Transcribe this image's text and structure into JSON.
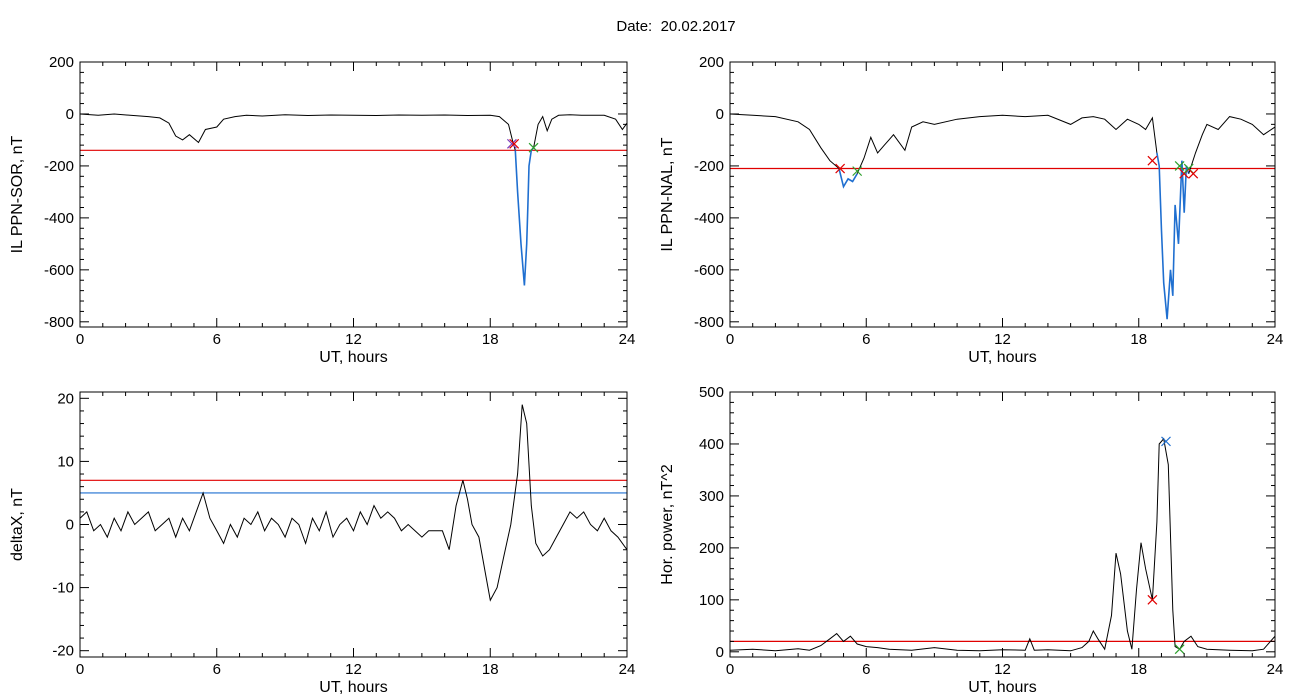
{
  "header": {
    "date_label": "Date:",
    "date_value": "20.02.2017"
  },
  "colors": {
    "trace": "#000000",
    "threshold": "#e00000",
    "highlight": "#1f6fd0",
    "marker_green": "#2ca02c",
    "marker_purple": "#7a3fbf"
  },
  "chart_data": [
    {
      "id": "il-sor",
      "type": "line",
      "xlabel": "UT, hours",
      "ylabel": "IL PPN-SOR, nT",
      "xlim": [
        0,
        24
      ],
      "ylim": [
        -820,
        200
      ],
      "xticks": [
        0,
        6,
        12,
        18,
        24
      ],
      "yticks": [
        -800,
        -600,
        -400,
        -200,
        0,
        200
      ],
      "series": [
        {
          "color": "#000000",
          "x": [
            0,
            0.8,
            1.5,
            2.2,
            3,
            3.5,
            3.9,
            4.2,
            4.5,
            4.8,
            5.2,
            5.5,
            6,
            6.3,
            6.8,
            7.3,
            8,
            9,
            10,
            11,
            12,
            13,
            14,
            15,
            16,
            17,
            18,
            18.4,
            18.8,
            19.0,
            19.1
          ],
          "y": [
            0,
            -5,
            0,
            -5,
            -10,
            -15,
            -35,
            -85,
            -100,
            -80,
            -110,
            -60,
            -50,
            -20,
            -10,
            -5,
            -8,
            -3,
            -6,
            -4,
            -5,
            -6,
            -4,
            -5,
            -4,
            -6,
            -5,
            -10,
            -40,
            -110,
            -140
          ]
        },
        {
          "color": "#1f6fd0",
          "x": [
            19.1,
            19.2,
            19.35,
            19.5,
            19.6,
            19.65,
            19.7,
            19.8,
            19.9
          ],
          "y": [
            -140,
            -300,
            -500,
            -660,
            -500,
            -350,
            -200,
            -140,
            -130
          ]
        },
        {
          "color": "#000000",
          "x": [
            19.9,
            20.1,
            20.3,
            20.5,
            20.7,
            21,
            21.5,
            22,
            23,
            23.5,
            23.8,
            24
          ],
          "y": [
            -130,
            -40,
            -10,
            -65,
            -20,
            -5,
            -3,
            -5,
            -5,
            -20,
            -60,
            -35
          ]
        }
      ],
      "thresholds": [
        {
          "y": -140,
          "color": "#e00000"
        }
      ],
      "markers": [
        {
          "x": 18.95,
          "y": -115,
          "color": "#7a3fbf"
        },
        {
          "x": 19.05,
          "y": -115,
          "color": "#e00000"
        },
        {
          "x": 19.9,
          "y": -130,
          "color": "#2ca02c"
        }
      ]
    },
    {
      "id": "il-nal",
      "type": "line",
      "xlabel": "UT, hours",
      "ylabel": "IL PPN-NAL, nT",
      "xlim": [
        0,
        24
      ],
      "ylim": [
        -820,
        200
      ],
      "xticks": [
        0,
        6,
        12,
        18,
        24
      ],
      "yticks": [
        -800,
        -600,
        -400,
        -200,
        0,
        200
      ],
      "series": [
        {
          "color": "#000000",
          "x": [
            0,
            1,
            2,
            3,
            3.5,
            4.0,
            4.4,
            4.8
          ],
          "y": [
            0,
            -5,
            -10,
            -30,
            -60,
            -130,
            -180,
            -210
          ]
        },
        {
          "color": "#1f6fd0",
          "x": [
            4.8,
            5.0,
            5.2,
            5.4,
            5.6
          ],
          "y": [
            -210,
            -280,
            -250,
            -260,
            -230
          ]
        },
        {
          "color": "#000000",
          "x": [
            5.6,
            5.9,
            6.2,
            6.5,
            6.8,
            7.2,
            7.7,
            8.0,
            8.5,
            9,
            10,
            11,
            12,
            13,
            14,
            15,
            15.5,
            16,
            16.5,
            17,
            17.5,
            18,
            18.3,
            18.6,
            18.8
          ],
          "y": [
            -230,
            -170,
            -90,
            -150,
            -120,
            -80,
            -140,
            -50,
            -30,
            -40,
            -20,
            -10,
            -5,
            -10,
            -5,
            -40,
            -15,
            -10,
            -20,
            -60,
            -20,
            -40,
            -60,
            -15,
            -150
          ]
        },
        {
          "color": "#1f6fd0",
          "x": [
            18.8,
            18.9,
            19.0,
            19.1,
            19.25,
            19.4,
            19.5,
            19.6,
            19.75,
            19.9,
            20.0,
            20.1,
            20.2
          ],
          "y": [
            -150,
            -200,
            -450,
            -650,
            -790,
            -600,
            -700,
            -350,
            -500,
            -180,
            -380,
            -200,
            -230
          ]
        },
        {
          "color": "#000000",
          "x": [
            20.2,
            20.5,
            20.8,
            21,
            21.5,
            22,
            22.5,
            23,
            23.5,
            24
          ],
          "y": [
            -230,
            -150,
            -80,
            -40,
            -60,
            -10,
            -20,
            -40,
            -80,
            -50
          ]
        }
      ],
      "thresholds": [
        {
          "y": -210,
          "color": "#e00000"
        }
      ],
      "markers": [
        {
          "x": 4.85,
          "y": -210,
          "color": "#e00000"
        },
        {
          "x": 5.6,
          "y": -220,
          "color": "#2ca02c"
        },
        {
          "x": 18.6,
          "y": -180,
          "color": "#e00000"
        },
        {
          "x": 19.8,
          "y": -200,
          "color": "#2ca02c"
        },
        {
          "x": 20.0,
          "y": -230,
          "color": "#e00000"
        },
        {
          "x": 20.2,
          "y": -210,
          "color": "#2ca02c"
        },
        {
          "x": 20.4,
          "y": -230,
          "color": "#e00000"
        }
      ]
    },
    {
      "id": "deltax",
      "type": "line",
      "xlabel": "UT, hours",
      "ylabel": "deltaX, nT",
      "xlim": [
        0,
        24
      ],
      "ylim": [
        -21,
        21
      ],
      "xticks": [
        0,
        6,
        12,
        18,
        24
      ],
      "yticks": [
        -20,
        -10,
        0,
        10,
        20
      ],
      "series": [
        {
          "color": "#000000",
          "x": [
            0,
            0.3,
            0.6,
            0.9,
            1.2,
            1.5,
            1.8,
            2.1,
            2.4,
            2.7,
            3.0,
            3.3,
            3.6,
            3.9,
            4.2,
            4.5,
            4.8,
            5.1,
            5.4,
            5.7,
            6.0,
            6.3,
            6.6,
            6.9,
            7.2,
            7.5,
            7.8,
            8.1,
            8.4,
            8.7,
            9.0,
            9.3,
            9.6,
            9.9,
            10.2,
            10.5,
            10.8,
            11.1,
            11.4,
            11.7,
            12.0,
            12.3,
            12.6,
            12.9,
            13.2,
            13.5,
            13.8,
            14.1,
            14.4,
            14.7,
            15.0,
            15.3,
            15.6,
            15.9,
            16.2,
            16.5,
            16.8,
            17.0,
            17.2,
            17.5,
            17.8,
            18.0,
            18.3,
            18.6,
            18.9,
            19.2,
            19.4,
            19.6,
            19.8,
            20.0,
            20.3,
            20.6,
            20.9,
            21.2,
            21.5,
            21.8,
            22.1,
            22.4,
            22.7,
            23.0,
            23.3,
            23.6,
            24.0
          ],
          "y": [
            1,
            2,
            -1,
            0,
            -2,
            1,
            -1,
            2,
            0,
            1,
            2,
            -1,
            0,
            1,
            -2,
            1,
            -1,
            2,
            5,
            1,
            -1,
            -3,
            0,
            -2,
            1,
            0,
            2,
            -1,
            1,
            0,
            -2,
            1,
            0,
            -3,
            1,
            -1,
            2,
            -2,
            0,
            1,
            -1,
            2,
            0,
            3,
            1,
            2,
            1,
            -1,
            0,
            -1,
            -2,
            -1,
            -1,
            -1,
            -4,
            3,
            7,
            4,
            0,
            -2,
            -8,
            -12,
            -10,
            -5,
            0,
            8,
            19,
            16,
            3,
            -3,
            -5,
            -4,
            -2,
            0,
            2,
            1,
            2,
            0,
            -1,
            1,
            -1,
            -2,
            -4
          ]
        }
      ],
      "thresholds": [
        {
          "y": 7,
          "color": "#e00000"
        },
        {
          "y": 5,
          "color": "#1f6fd0"
        }
      ],
      "markers": []
    },
    {
      "id": "hor-power",
      "type": "line",
      "xlabel": "UT, hours",
      "ylabel": "Hor. power, nT^2",
      "xlim": [
        0,
        24
      ],
      "ylim": [
        -10,
        500
      ],
      "xticks": [
        0,
        6,
        12,
        18,
        24
      ],
      "yticks": [
        0,
        100,
        200,
        300,
        400,
        500
      ],
      "series": [
        {
          "color": "#000000",
          "x": [
            0,
            1,
            2,
            3,
            3.5,
            4,
            4.4,
            4.7,
            5.0,
            5.3,
            5.6,
            6.0,
            6.5,
            7,
            8,
            9,
            10,
            11,
            12,
            13,
            13.2,
            13.4,
            14,
            15,
            15.5,
            15.8,
            16.0,
            16.2,
            16.5,
            16.8,
            17.0,
            17.2,
            17.5,
            17.7,
            17.9,
            18.1,
            18.3,
            18.6,
            18.8,
            18.9,
            19.1,
            19.3,
            19.5,
            19.6,
            19.8,
            20.0,
            20.3,
            20.6,
            21,
            22,
            23,
            23.5,
            24
          ],
          "y": [
            3,
            5,
            2,
            6,
            3,
            12,
            25,
            35,
            20,
            30,
            15,
            10,
            8,
            5,
            3,
            8,
            3,
            2,
            4,
            3,
            25,
            3,
            4,
            2,
            8,
            20,
            40,
            25,
            5,
            70,
            190,
            150,
            40,
            5,
            120,
            210,
            160,
            100,
            250,
            400,
            410,
            360,
            80,
            10,
            5,
            20,
            30,
            10,
            5,
            3,
            2,
            5,
            30
          ]
        }
      ],
      "thresholds": [
        {
          "y": 20,
          "color": "#e00000"
        }
      ],
      "markers": [
        {
          "x": 18.6,
          "y": 100,
          "color": "#e00000"
        },
        {
          "x": 19.2,
          "y": 405,
          "color": "#1f6fd0"
        },
        {
          "x": 19.8,
          "y": 5,
          "color": "#2ca02c"
        }
      ]
    }
  ]
}
